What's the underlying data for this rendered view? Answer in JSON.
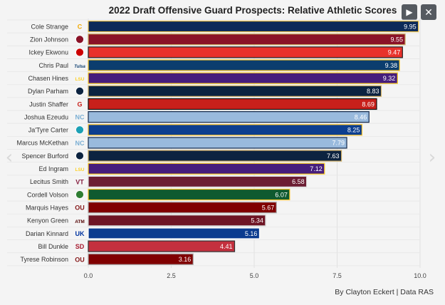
{
  "header": {
    "title": "2022 Draft Offensive Guard Prospects: Relative Athletic Scores"
  },
  "controls": {
    "play_icon": "play-icon",
    "close_icon": "close-icon",
    "prev_icon": "chevron-left-icon",
    "next_icon": "chevron-right-icon"
  },
  "footer": {
    "credit": "By Clayton Eckert | Data RAS"
  },
  "chart_data": {
    "type": "bar",
    "orientation": "horizontal",
    "xlim": [
      0,
      10
    ],
    "xticks": [
      "0.0",
      "2.5",
      "5.0",
      "7.5",
      "10.0"
    ],
    "grid": true,
    "categories": [
      "Cole Strange",
      "Zion Johnson",
      "Ickey Ekwonu",
      "Chris Paul",
      "Chasen Hines",
      "Dylan Parham",
      "Justin Shaffer",
      "Joshua Ezeudu",
      "Ja'Tyre Carter",
      "Marcus McKethan",
      "Spencer Burford",
      "Ed Ingram",
      "Lecitus Smith",
      "Cordell Volson",
      "Marquis Hayes",
      "Kenyon Green",
      "Darian Kinnard",
      "Bill Dunkle",
      "Tyrese Robinson"
    ],
    "values": [
      9.95,
      9.55,
      9.47,
      9.38,
      9.32,
      8.83,
      8.69,
      8.46,
      8.25,
      7.79,
      7.63,
      7.12,
      6.58,
      6.07,
      5.67,
      5.34,
      5.16,
      4.41,
      3.16
    ],
    "value_labels": [
      "9.95",
      "9.55",
      "9.47",
      "9.38",
      "9.32",
      "8.83",
      "8.69",
      "8.46",
      "8.25",
      "7.79",
      "7.63",
      "7.12",
      "6.58",
      "6.07",
      "5.67",
      "5.34",
      "5.16",
      "4.41",
      "3.16"
    ],
    "bar_colors": [
      "#0d2a59",
      "#8a1227",
      "#e8312b",
      "#0b3d6e",
      "#461d7c",
      "#0c2340",
      "#c8201b",
      "#99badd",
      "#0d3f8f",
      "#99badd",
      "#0c2340",
      "#461d7c",
      "#6c1d33",
      "#0f5a30",
      "#800000",
      "#6e1424",
      "#0b3b8f",
      "#c4303e",
      "#800000"
    ],
    "bar_borders": [
      "#f2c74e",
      "#c9a860",
      "#222222",
      "#ffc72c",
      "#fdd023",
      "#d6b66a",
      "#111111",
      "#13294b",
      "#ffc72c",
      "#13294b",
      "#c9a860",
      "#fdd023",
      "#dddddd",
      "#ffc72c",
      "#aaaaaa",
      "#cccccc",
      "#ffffff",
      "#333333",
      "#aaaaaa"
    ],
    "label_colors": [
      "#ffffff",
      "#ffffff",
      "#ffffff",
      "#ffffff",
      "#ffffff",
      "#ffffff",
      "#ffffff",
      "#ffffff",
      "#ffffff",
      "#ffffff",
      "#ffffff",
      "#ffffff",
      "#ffffff",
      "#ffffff",
      "#ffffff",
      "#ffffff",
      "#ffffff",
      "#ffffff",
      "#ffffff"
    ],
    "logos": [
      "logo-c-icon",
      "logo-eagle-icon",
      "logo-wolf-icon",
      "logo-script-icon",
      "logo-lsu-icon",
      "logo-tiger-icon",
      "logo-g-icon",
      "logo-nc-icon",
      "logo-ring-icon",
      "logo-nc-icon",
      "logo-wing-icon",
      "logo-lsu-icon",
      "logo-vt-icon",
      "logo-bison-icon",
      "logo-ou-icon",
      "logo-atm-icon",
      "logo-uk-icon",
      "logo-sdsu-icon",
      "logo-ou-icon"
    ],
    "logo_colors": [
      "#f2a900",
      "#8a1227",
      "#cc0000",
      "#0b3d6e",
      "#fdd023",
      "#0c2340",
      "#c8201b",
      "#7bafd4",
      "#1ca0b5",
      "#7bafd4",
      "#0c2340",
      "#fdd023",
      "#861f41",
      "#2e7d32",
      "#841617",
      "#500000",
      "#0033a0",
      "#a6192e",
      "#841617"
    ],
    "logo_texts": [
      "C",
      "",
      "",
      "Tulsa",
      "LSU",
      "",
      "G",
      "NC",
      "",
      "NC",
      "",
      "LSU",
      "VT",
      "",
      "OU",
      "ATM",
      "UK",
      "SD",
      "OU"
    ]
  }
}
